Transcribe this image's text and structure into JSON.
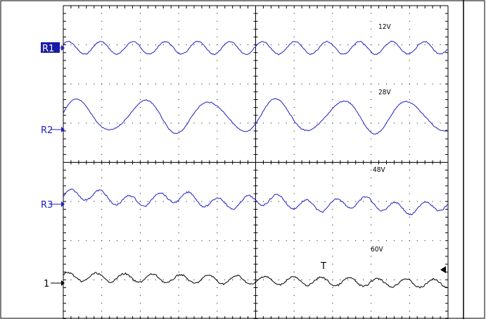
{
  "chart_data": {
    "type": "line",
    "title": "",
    "xlabel": "",
    "ylabel": "",
    "grid": true,
    "divisions": {
      "x": 10,
      "y": 8
    },
    "x_range": [
      0,
      10
    ],
    "y_range": [
      0,
      8
    ],
    "channels": [
      {
        "label": "R1",
        "voltage": "12V",
        "color": "#1e1ec8",
        "selected": true
      },
      {
        "label": "R2",
        "voltage": "28V",
        "color": "#1e1ec8",
        "selected": false
      },
      {
        "label": "R3",
        "voltage": "48V",
        "color": "#1e1ec8",
        "selected": false
      },
      {
        "label": "1",
        "voltage": "60V",
        "color": "#000000",
        "selected": false
      }
    ],
    "trigger_marker": "T",
    "colors": {
      "selected_label_bg": "#1a1aa8",
      "grid": "#000000",
      "frame": "#000000"
    }
  }
}
